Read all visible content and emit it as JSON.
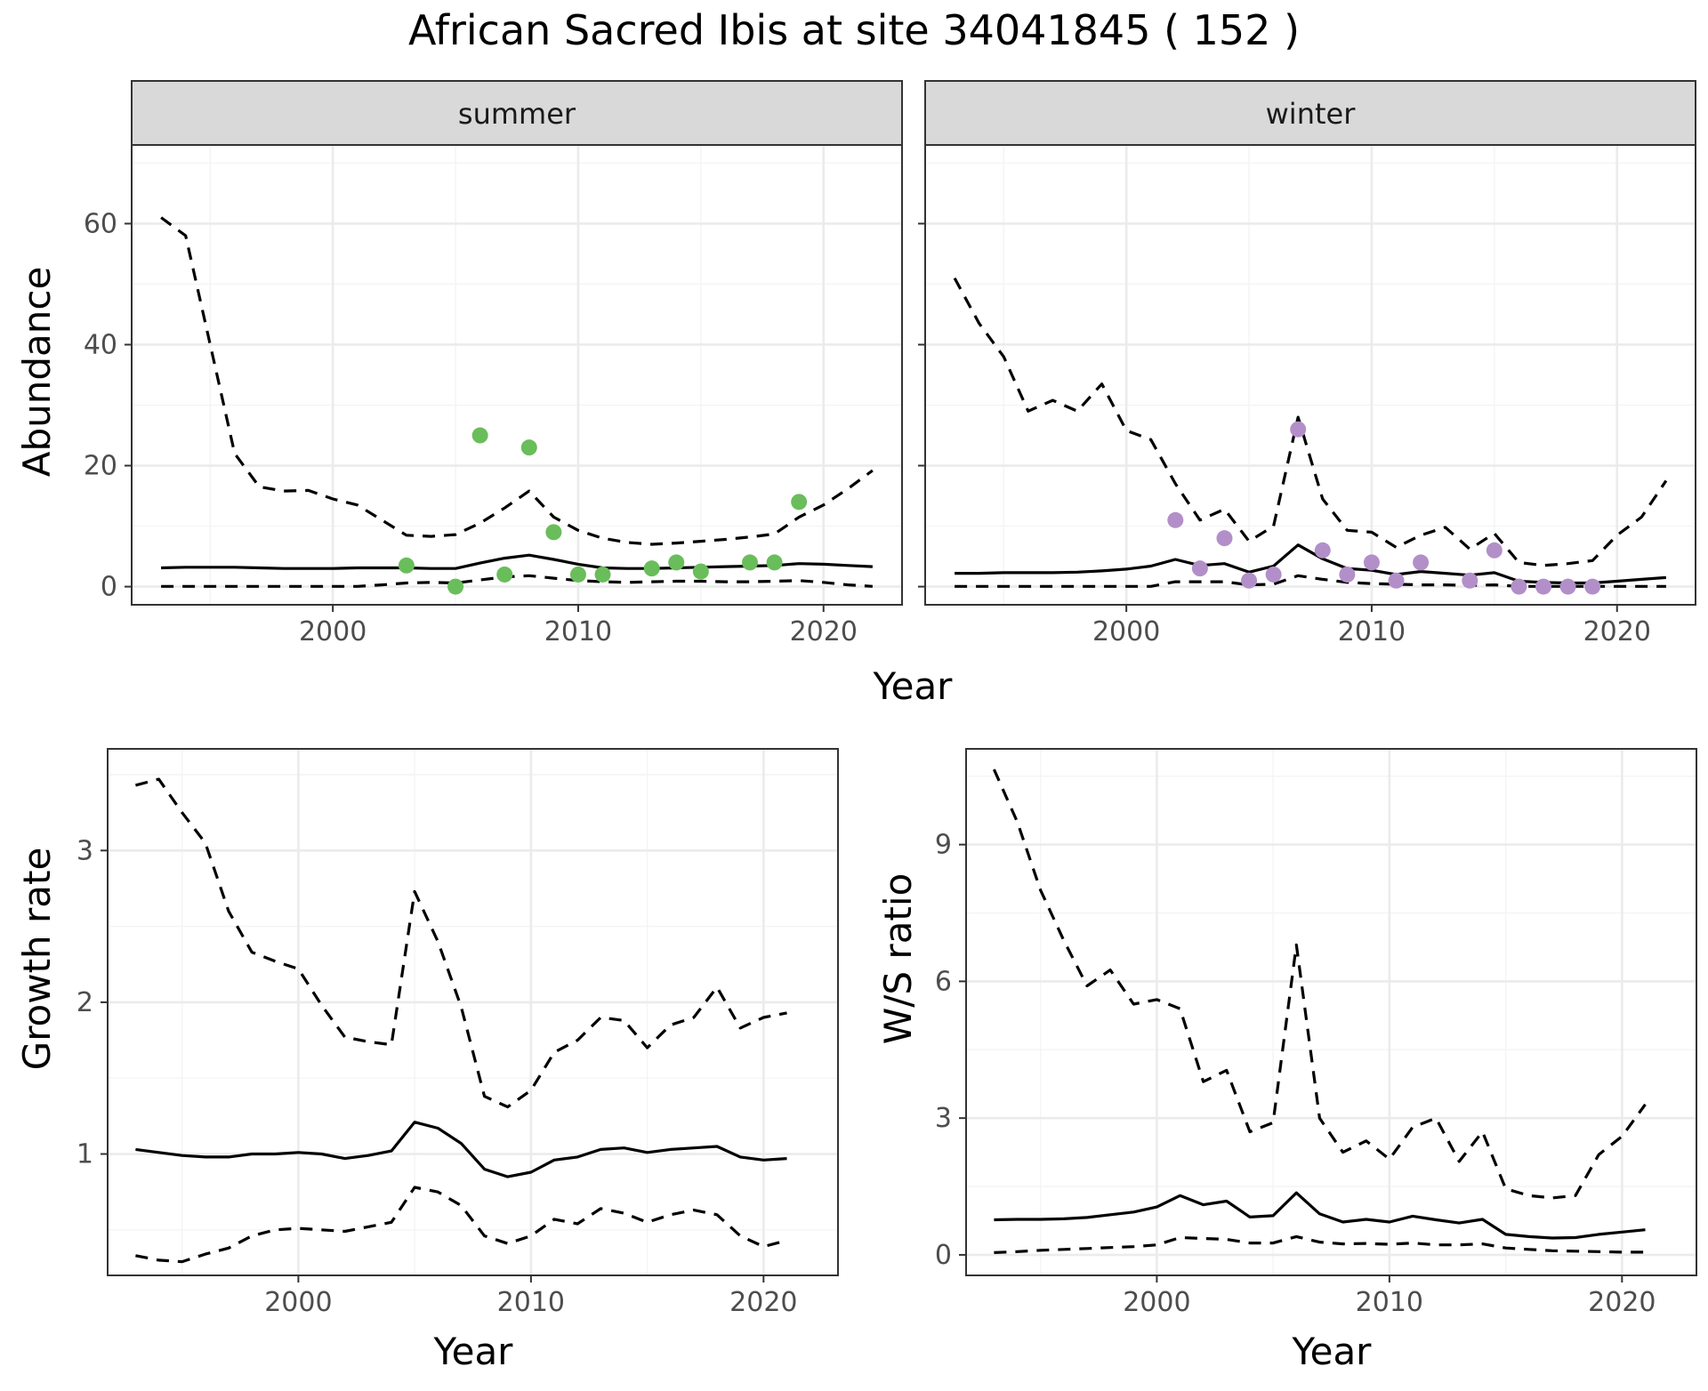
{
  "title": "African Sacred Ibis at site 34041845 ( 152 )",
  "colors": {
    "summer_points": "#6abd5b",
    "winter_points": "#b38fc9",
    "lines": "#000000"
  },
  "chart_data": [
    {
      "type": "line",
      "panel": "summer",
      "strip_label": "summer",
      "xlabel": "",
      "ylabel": "Abundance",
      "xlim": [
        1991.8,
        2023.2
      ],
      "ylim": [
        -3,
        73
      ],
      "x_ticks": [
        2000,
        2010,
        2020
      ],
      "y_ticks": [
        0,
        20,
        40,
        60
      ],
      "grid": true,
      "series": [
        {
          "style": "solid",
          "x": [
            1993,
            1994,
            1995,
            1996,
            1997,
            1998,
            1999,
            2000,
            2001,
            2002,
            2003,
            2004,
            2005,
            2006,
            2007,
            2008,
            2009,
            2010,
            2011,
            2012,
            2013,
            2014,
            2015,
            2016,
            2017,
            2018,
            2019,
            2020,
            2021,
            2022
          ],
          "values": [
            3.1,
            3.2,
            3.2,
            3.2,
            3.1,
            3.0,
            3.0,
            3.0,
            3.1,
            3.1,
            3.1,
            3.0,
            3.0,
            3.9,
            4.7,
            5.2,
            4.5,
            3.7,
            3.1,
            3.0,
            3.0,
            3.1,
            3.2,
            3.3,
            3.4,
            3.5,
            3.8,
            3.7,
            3.5,
            3.3
          ]
        },
        {
          "style": "dashed",
          "x": [
            1993,
            1994,
            1995,
            1996,
            1997,
            1998,
            1999,
            2000,
            2001,
            2002,
            2003,
            2004,
            2005,
            2006,
            2007,
            2008,
            2009,
            2010,
            2011,
            2012,
            2013,
            2014,
            2015,
            2016,
            2017,
            2018,
            2019,
            2020,
            2021,
            2022
          ],
          "values": [
            61,
            58,
            40,
            22,
            16.5,
            15.8,
            15.9,
            14.5,
            13.5,
            11,
            8.5,
            8.3,
            8.6,
            10.5,
            13,
            15.8,
            11.5,
            9.3,
            8,
            7.3,
            7,
            7.2,
            7.5,
            7.8,
            8.2,
            8.7,
            11.5,
            13.5,
            16.2,
            19.2
          ]
        },
        {
          "style": "dashed",
          "x": [
            1993,
            1994,
            1995,
            1996,
            1997,
            1998,
            1999,
            2000,
            2001,
            2002,
            2003,
            2004,
            2005,
            2006,
            2007,
            2008,
            2009,
            2010,
            2011,
            2012,
            2013,
            2014,
            2015,
            2016,
            2017,
            2018,
            2019,
            2020,
            2021,
            2022
          ],
          "values": [
            0.05,
            0.05,
            0.05,
            0.05,
            0.05,
            0.05,
            0.05,
            0.05,
            0.05,
            0.3,
            0.6,
            0.7,
            0.6,
            1.1,
            1.6,
            1.8,
            1.4,
            1.0,
            0.8,
            0.7,
            0.8,
            0.9,
            0.9,
            0.8,
            0.8,
            0.9,
            1.0,
            0.7,
            0.3,
            0.05
          ]
        }
      ],
      "points": {
        "x": [
          2003,
          2005,
          2006,
          2007,
          2008,
          2009,
          2010,
          2011,
          2013,
          2014,
          2015,
          2017,
          2018,
          2019
        ],
        "y": [
          3.5,
          0,
          25,
          2,
          23,
          9,
          2,
          2,
          3,
          4,
          2.5,
          4,
          4,
          14
        ]
      }
    },
    {
      "type": "line",
      "panel": "winter",
      "strip_label": "winter",
      "xlabel": "",
      "ylabel": "",
      "xlim": [
        1991.8,
        2023.2
      ],
      "ylim": [
        -3,
        73
      ],
      "x_ticks": [
        2000,
        2010,
        2020
      ],
      "y_ticks": [],
      "grid": true,
      "series": [
        {
          "style": "solid",
          "x": [
            1993,
            1994,
            1995,
            1996,
            1997,
            1998,
            1999,
            2000,
            2001,
            2002,
            2003,
            2004,
            2005,
            2006,
            2007,
            2008,
            2009,
            2010,
            2011,
            2012,
            2013,
            2014,
            2015,
            2016,
            2017,
            2018,
            2019,
            2020,
            2021,
            2022
          ],
          "values": [
            2.2,
            2.2,
            2.3,
            2.3,
            2.3,
            2.4,
            2.6,
            2.9,
            3.4,
            4.5,
            3.5,
            3.8,
            2.4,
            3.4,
            6.9,
            4.6,
            3,
            2.7,
            2,
            2.5,
            2.2,
            1.9,
            2.3,
            0.9,
            0.7,
            0.6,
            0.6,
            0.9,
            1.2,
            1.5
          ]
        },
        {
          "style": "dashed",
          "x": [
            1993,
            1994,
            1995,
            1996,
            1997,
            1998,
            1999,
            2000,
            2001,
            2002,
            2003,
            2004,
            2005,
            2006,
            2007,
            2008,
            2009,
            2010,
            2011,
            2012,
            2013,
            2014,
            2015,
            2016,
            2017,
            2018,
            2019,
            2020,
            2021,
            2022
          ],
          "values": [
            51,
            43.5,
            38,
            29,
            30.8,
            29,
            33.5,
            25.8,
            24.3,
            17,
            11,
            12.8,
            7.5,
            10,
            28,
            14.5,
            9.3,
            9,
            6.5,
            8.5,
            9.8,
            6.2,
            8.8,
            4,
            3.5,
            3.8,
            4.3,
            8.5,
            11.5,
            17.5
          ]
        },
        {
          "style": "dashed",
          "x": [
            1993,
            1994,
            1995,
            1996,
            1997,
            1998,
            1999,
            2000,
            2001,
            2002,
            2003,
            2004,
            2005,
            2006,
            2007,
            2008,
            2009,
            2010,
            2011,
            2012,
            2013,
            2014,
            2015,
            2016,
            2017,
            2018,
            2019,
            2020,
            2021,
            2022
          ],
          "values": [
            0.05,
            0.05,
            0.05,
            0.05,
            0.05,
            0.05,
            0.05,
            0.05,
            0.05,
            0.8,
            0.8,
            0.8,
            0.3,
            0.4,
            1.8,
            1.2,
            0.7,
            0.5,
            0.4,
            0.3,
            0.3,
            0.2,
            0.3,
            0.05,
            0.05,
            0.05,
            0.05,
            0.05,
            0.05,
            0.05
          ]
        }
      ],
      "points": {
        "x": [
          2002,
          2003,
          2004,
          2005,
          2006,
          2007,
          2008,
          2009,
          2010,
          2011,
          2012,
          2014,
          2015,
          2016,
          2017,
          2018,
          2019
        ],
        "y": [
          11,
          3,
          8,
          1,
          2,
          26,
          6,
          2,
          4,
          1,
          4,
          1,
          6,
          0,
          0,
          0,
          0
        ]
      }
    },
    {
      "type": "line",
      "panel": "growth",
      "strip_label": "",
      "xlabel": "Year",
      "ylabel": "Growth rate",
      "xlim": [
        1991.8,
        2023.2
      ],
      "ylim": [
        0.2,
        3.67
      ],
      "x_ticks": [
        2000,
        2010,
        2020
      ],
      "y_ticks": [
        1,
        2,
        3
      ],
      "grid": true,
      "series": [
        {
          "style": "solid",
          "x": [
            1993,
            1994,
            1995,
            1996,
            1997,
            1998,
            1999,
            2000,
            2001,
            2002,
            2003,
            2004,
            2005,
            2006,
            2007,
            2008,
            2009,
            2010,
            2011,
            2012,
            2013,
            2014,
            2015,
            2016,
            2017,
            2018,
            2019,
            2020,
            2021
          ],
          "values": [
            1.03,
            1.01,
            0.99,
            0.98,
            0.98,
            1.0,
            1.0,
            1.01,
            1.0,
            0.97,
            0.99,
            1.02,
            1.21,
            1.17,
            1.07,
            0.9,
            0.85,
            0.88,
            0.96,
            0.98,
            1.03,
            1.04,
            1.01,
            1.03,
            1.04,
            1.05,
            0.98,
            0.96,
            0.97
          ]
        },
        {
          "style": "dashed",
          "x": [
            1993,
            1994,
            1995,
            1996,
            1997,
            1998,
            1999,
            2000,
            2001,
            2002,
            2003,
            2004,
            2005,
            2006,
            2007,
            2008,
            2009,
            2010,
            2011,
            2012,
            2013,
            2014,
            2015,
            2016,
            2017,
            2018,
            2019,
            2020,
            2021
          ],
          "values": [
            3.43,
            3.47,
            3.25,
            3.05,
            2.6,
            2.33,
            2.27,
            2.22,
            1.98,
            1.77,
            1.74,
            1.72,
            2.73,
            2.4,
            1.97,
            1.38,
            1.31,
            1.42,
            1.67,
            1.75,
            1.9,
            1.88,
            1.7,
            1.85,
            1.9,
            2.1,
            1.83,
            1.9,
            1.93
          ]
        },
        {
          "style": "dashed",
          "x": [
            1993,
            1994,
            1995,
            1996,
            1997,
            1998,
            1999,
            2000,
            2001,
            2002,
            2003,
            2004,
            2005,
            2006,
            2007,
            2008,
            2009,
            2010,
            2011,
            2012,
            2013,
            2014,
            2015,
            2016,
            2017,
            2018,
            2019,
            2020,
            2021
          ],
          "values": [
            0.33,
            0.3,
            0.29,
            0.34,
            0.38,
            0.46,
            0.5,
            0.51,
            0.5,
            0.49,
            0.52,
            0.55,
            0.78,
            0.75,
            0.66,
            0.46,
            0.41,
            0.46,
            0.57,
            0.54,
            0.64,
            0.61,
            0.55,
            0.6,
            0.63,
            0.6,
            0.46,
            0.39,
            0.43
          ]
        }
      ]
    },
    {
      "type": "line",
      "panel": "ratio",
      "strip_label": "",
      "xlabel": "Year",
      "ylabel": "W/S ratio",
      "xlim": [
        1991.8,
        2023.2
      ],
      "ylim": [
        -0.45,
        11.1
      ],
      "x_ticks": [
        2000,
        2010,
        2020
      ],
      "y_ticks": [
        0,
        3,
        6,
        9
      ],
      "grid": true,
      "series": [
        {
          "style": "solid",
          "x": [
            1993,
            1994,
            1995,
            1996,
            1997,
            1998,
            1999,
            2000,
            2001,
            2002,
            2003,
            2004,
            2005,
            2006,
            2007,
            2008,
            2009,
            2010,
            2011,
            2012,
            2013,
            2014,
            2015,
            2016,
            2017,
            2018,
            2019,
            2020,
            2021
          ],
          "values": [
            0.77,
            0.78,
            0.78,
            0.79,
            0.82,
            0.88,
            0.94,
            1.05,
            1.3,
            1.1,
            1.18,
            0.83,
            0.86,
            1.36,
            0.9,
            0.72,
            0.78,
            0.72,
            0.85,
            0.77,
            0.7,
            0.78,
            0.45,
            0.4,
            0.37,
            0.38,
            0.45,
            0.5,
            0.55
          ]
        },
        {
          "style": "dashed",
          "x": [
            1993,
            1994,
            1995,
            1996,
            1997,
            1998,
            1999,
            2000,
            2001,
            2002,
            2003,
            2004,
            2005,
            2006,
            2007,
            2008,
            2009,
            2010,
            2011,
            2012,
            2013,
            2014,
            2015,
            2016,
            2017,
            2018,
            2019,
            2020,
            2021
          ],
          "values": [
            10.65,
            9.5,
            8.0,
            6.9,
            5.9,
            6.25,
            5.5,
            5.6,
            5.4,
            3.8,
            4.05,
            2.7,
            2.9,
            6.8,
            3.0,
            2.25,
            2.5,
            2.1,
            2.8,
            3.0,
            2.05,
            2.7,
            1.45,
            1.3,
            1.25,
            1.3,
            2.2,
            2.6,
            3.3
          ]
        },
        {
          "style": "dashed",
          "x": [
            1993,
            1994,
            1995,
            1996,
            1997,
            1998,
            1999,
            2000,
            2001,
            2002,
            2003,
            2004,
            2005,
            2006,
            2007,
            2008,
            2009,
            2010,
            2011,
            2012,
            2013,
            2014,
            2015,
            2016,
            2017,
            2018,
            2019,
            2020,
            2021
          ],
          "values": [
            0.05,
            0.07,
            0.1,
            0.12,
            0.14,
            0.16,
            0.18,
            0.22,
            0.38,
            0.36,
            0.34,
            0.26,
            0.26,
            0.4,
            0.28,
            0.24,
            0.25,
            0.23,
            0.26,
            0.22,
            0.22,
            0.24,
            0.15,
            0.12,
            0.09,
            0.08,
            0.07,
            0.06,
            0.06
          ]
        }
      ]
    }
  ]
}
